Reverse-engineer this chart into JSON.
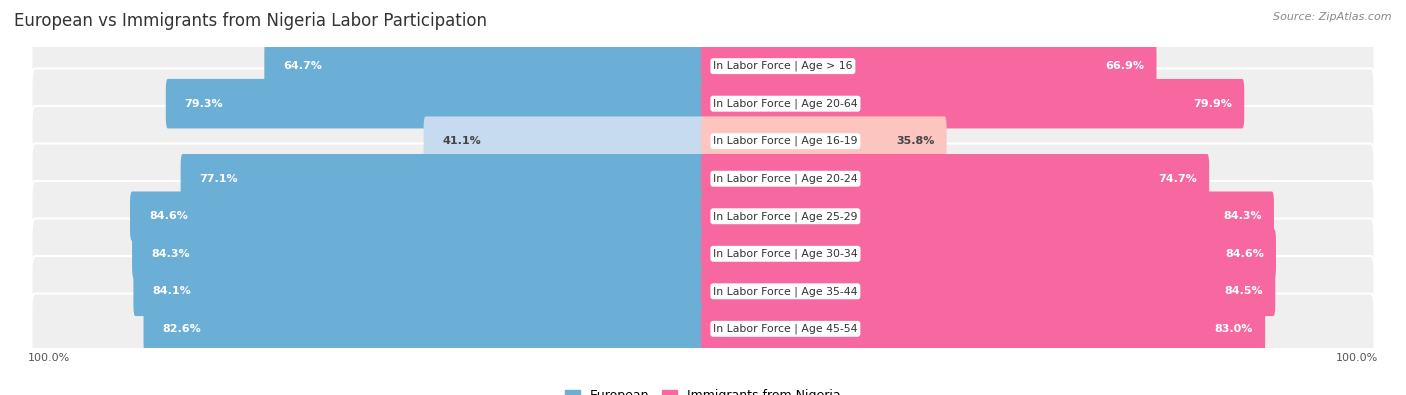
{
  "title": "European vs Immigrants from Nigeria Labor Participation",
  "source": "Source: ZipAtlas.com",
  "categories": [
    "In Labor Force | Age > 16",
    "In Labor Force | Age 20-64",
    "In Labor Force | Age 16-19",
    "In Labor Force | Age 20-24",
    "In Labor Force | Age 25-29",
    "In Labor Force | Age 30-34",
    "In Labor Force | Age 35-44",
    "In Labor Force | Age 45-54"
  ],
  "european": [
    64.7,
    79.3,
    41.1,
    77.1,
    84.6,
    84.3,
    84.1,
    82.6
  ],
  "nigeria": [
    66.9,
    79.9,
    35.8,
    74.7,
    84.3,
    84.6,
    84.5,
    83.0
  ],
  "european_color_strong": "#6baed6",
  "european_color_light": "#c6dbef",
  "nigeria_color_strong": "#f768a1",
  "nigeria_color_light": "#fcc5c0",
  "row_bg_color": "#efefef",
  "max_val": 100.0,
  "label_fontsize": 8.0,
  "title_fontsize": 12,
  "source_fontsize": 8,
  "legend_fontsize": 9,
  "axis_label_fontsize": 8,
  "light_threshold": 55
}
